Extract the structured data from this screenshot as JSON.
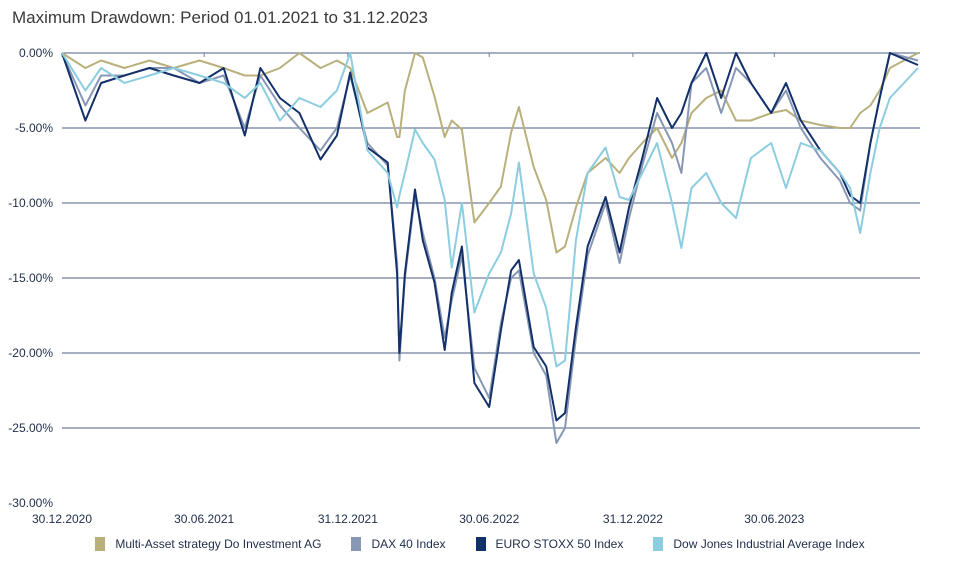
{
  "chart_data": {
    "type": "line",
    "title": "Maximum Drawdown: Period 01.01.2021 to 31.12.2023",
    "xlabel": "",
    "ylabel": "",
    "ylim": [
      -30,
      0
    ],
    "yticks": [
      "0.00%",
      "-5.00%",
      "-10.00%",
      "-15.00%",
      "-20.00%",
      "-25.00%",
      "-30.00%"
    ],
    "ytick_values": [
      0,
      -5,
      -10,
      -15,
      -20,
      -25,
      -30
    ],
    "xticks": [
      "30.12.2020",
      "30.06.2021",
      "31.12.2021",
      "30.06.2022",
      "31.12.2022",
      "30.06.2023"
    ],
    "xtick_dates": [
      "2020-12-30",
      "2021-06-30",
      "2021-12-31",
      "2022-06-30",
      "2022-12-31",
      "2023-06-30"
    ],
    "xlim": [
      "2020-12-30",
      "2023-12-31"
    ],
    "grid": "horizontal",
    "legend_position": "bottom",
    "x": [
      "2020-12-30",
      "2021-01-29",
      "2021-02-18",
      "2021-03-20",
      "2021-04-21",
      "2021-05-22",
      "2021-06-24",
      "2021-07-25",
      "2021-08-21",
      "2021-09-10",
      "2021-10-05",
      "2021-10-30",
      "2021-11-26",
      "2021-12-17",
      "2022-01-03",
      "2022-01-25",
      "2022-02-20",
      "2022-03-04",
      "2022-03-07",
      "2022-03-14",
      "2022-03-27",
      "2022-04-06",
      "2022-04-21",
      "2022-05-04",
      "2022-05-13",
      "2022-05-26",
      "2022-06-11",
      "2022-06-30",
      "2022-07-15",
      "2022-07-28",
      "2022-08-07",
      "2022-08-26",
      "2022-09-11",
      "2022-09-24",
      "2022-10-05",
      "2022-10-19",
      "2022-11-03",
      "2022-11-26",
      "2022-12-14",
      "2022-12-26",
      "2023-01-12",
      "2023-01-31",
      "2023-02-19",
      "2023-03-03",
      "2023-03-16",
      "2023-04-04",
      "2023-04-23",
      "2023-05-12",
      "2023-05-31",
      "2023-06-26",
      "2023-07-15",
      "2023-08-03",
      "2023-08-28",
      "2023-09-22",
      "2023-10-05",
      "2023-10-18",
      "2023-10-31",
      "2023-11-12",
      "2023-11-25",
      "2023-12-31"
    ],
    "series": [
      {
        "name": "Multi-Asset strategy Do Investment AG",
        "color": "#b9b07c",
        "values": [
          0,
          -1,
          -0.5,
          -1,
          -0.5,
          -1,
          -0.5,
          -1,
          -1.5,
          -1.5,
          -1,
          0,
          -1,
          -0.5,
          -1,
          -4,
          -3.3,
          -5.6,
          -5.6,
          -2.5,
          0,
          -0.3,
          -2.9,
          -5.6,
          -4.5,
          -5.1,
          -11.3,
          -10,
          -8.9,
          -5.3,
          -3.6,
          -7.6,
          -9.8,
          -13.3,
          -12.9,
          -10.3,
          -8,
          -7,
          -8,
          -7,
          -6,
          -5,
          -7,
          -6,
          -4,
          -3,
          -2.5,
          -4.5,
          -4.5,
          -4,
          -3.8,
          -4.5,
          -4.8,
          -5,
          -5,
          -4,
          -3.5,
          -2.5,
          -1,
          0
        ]
      },
      {
        "name": "DAX 40 Index",
        "color": "#8898b4",
        "values": [
          0,
          -3.5,
          -1.5,
          -1.5,
          -1,
          -1,
          -2,
          -1.5,
          -5,
          -1.5,
          -3.5,
          -5,
          -6.5,
          -5,
          -1.5,
          -6,
          -7.5,
          -14,
          -20.5,
          -15,
          -9.5,
          -12,
          -15,
          -19,
          -16.5,
          -13.5,
          -21,
          -23,
          -18,
          -15,
          -14.5,
          -20,
          -21.5,
          -26,
          -25,
          -19,
          -13.5,
          -10,
          -14,
          -11,
          -7.5,
          -4,
          -6,
          -8,
          -2,
          -1,
          -4,
          -1,
          -2,
          -4,
          -2.5,
          -5,
          -7,
          -8.5,
          -10,
          -10.5,
          -6,
          -3,
          0,
          -0.5
        ]
      },
      {
        "name": "EURO STOXX 50 Index",
        "color": "#13306a",
        "values": [
          0,
          -4.5,
          -2,
          -1.5,
          -1,
          -1.5,
          -2,
          -1,
          -5.5,
          -1,
          -3,
          -4,
          -7.1,
          -5.5,
          -1.3,
          -6.3,
          -7.3,
          -14.7,
          -20,
          -14.7,
          -9.1,
          -12.5,
          -15.3,
          -19.8,
          -16,
          -12.9,
          -22,
          -23.6,
          -18.5,
          -14.5,
          -13.8,
          -19.6,
          -20.9,
          -24.5,
          -24,
          -18.3,
          -12.9,
          -9.6,
          -13.3,
          -10.3,
          -7,
          -3,
          -5,
          -4,
          -2,
          0,
          -3,
          0,
          -2,
          -4,
          -2,
          -4.5,
          -6.5,
          -8,
          -9.5,
          -10,
          -6,
          -3,
          0,
          -0.8
        ]
      },
      {
        "name": "Dow Jones Industrial Average Index",
        "color": "#8ccde0",
        "values": [
          0,
          -2.5,
          -1,
          -2,
          -1.5,
          -1,
          -1.5,
          -2,
          -3,
          -2,
          -4.5,
          -3,
          -3.6,
          -2.5,
          0,
          -6.5,
          -8,
          -10.3,
          -9.5,
          -8,
          -5.1,
          -6,
          -7.1,
          -9.8,
          -14.3,
          -10,
          -17.3,
          -14.7,
          -13.3,
          -10.7,
          -7.3,
          -14.7,
          -17,
          -20.9,
          -20.5,
          -12.5,
          -8,
          -6.3,
          -9.6,
          -9.8,
          -8,
          -6,
          -10,
          -13,
          -9,
          -8,
          -10,
          -11,
          -7,
          -6,
          -9,
          -6,
          -6.5,
          -8,
          -9,
          -12,
          -8,
          -5,
          -3,
          -1
        ]
      }
    ]
  }
}
